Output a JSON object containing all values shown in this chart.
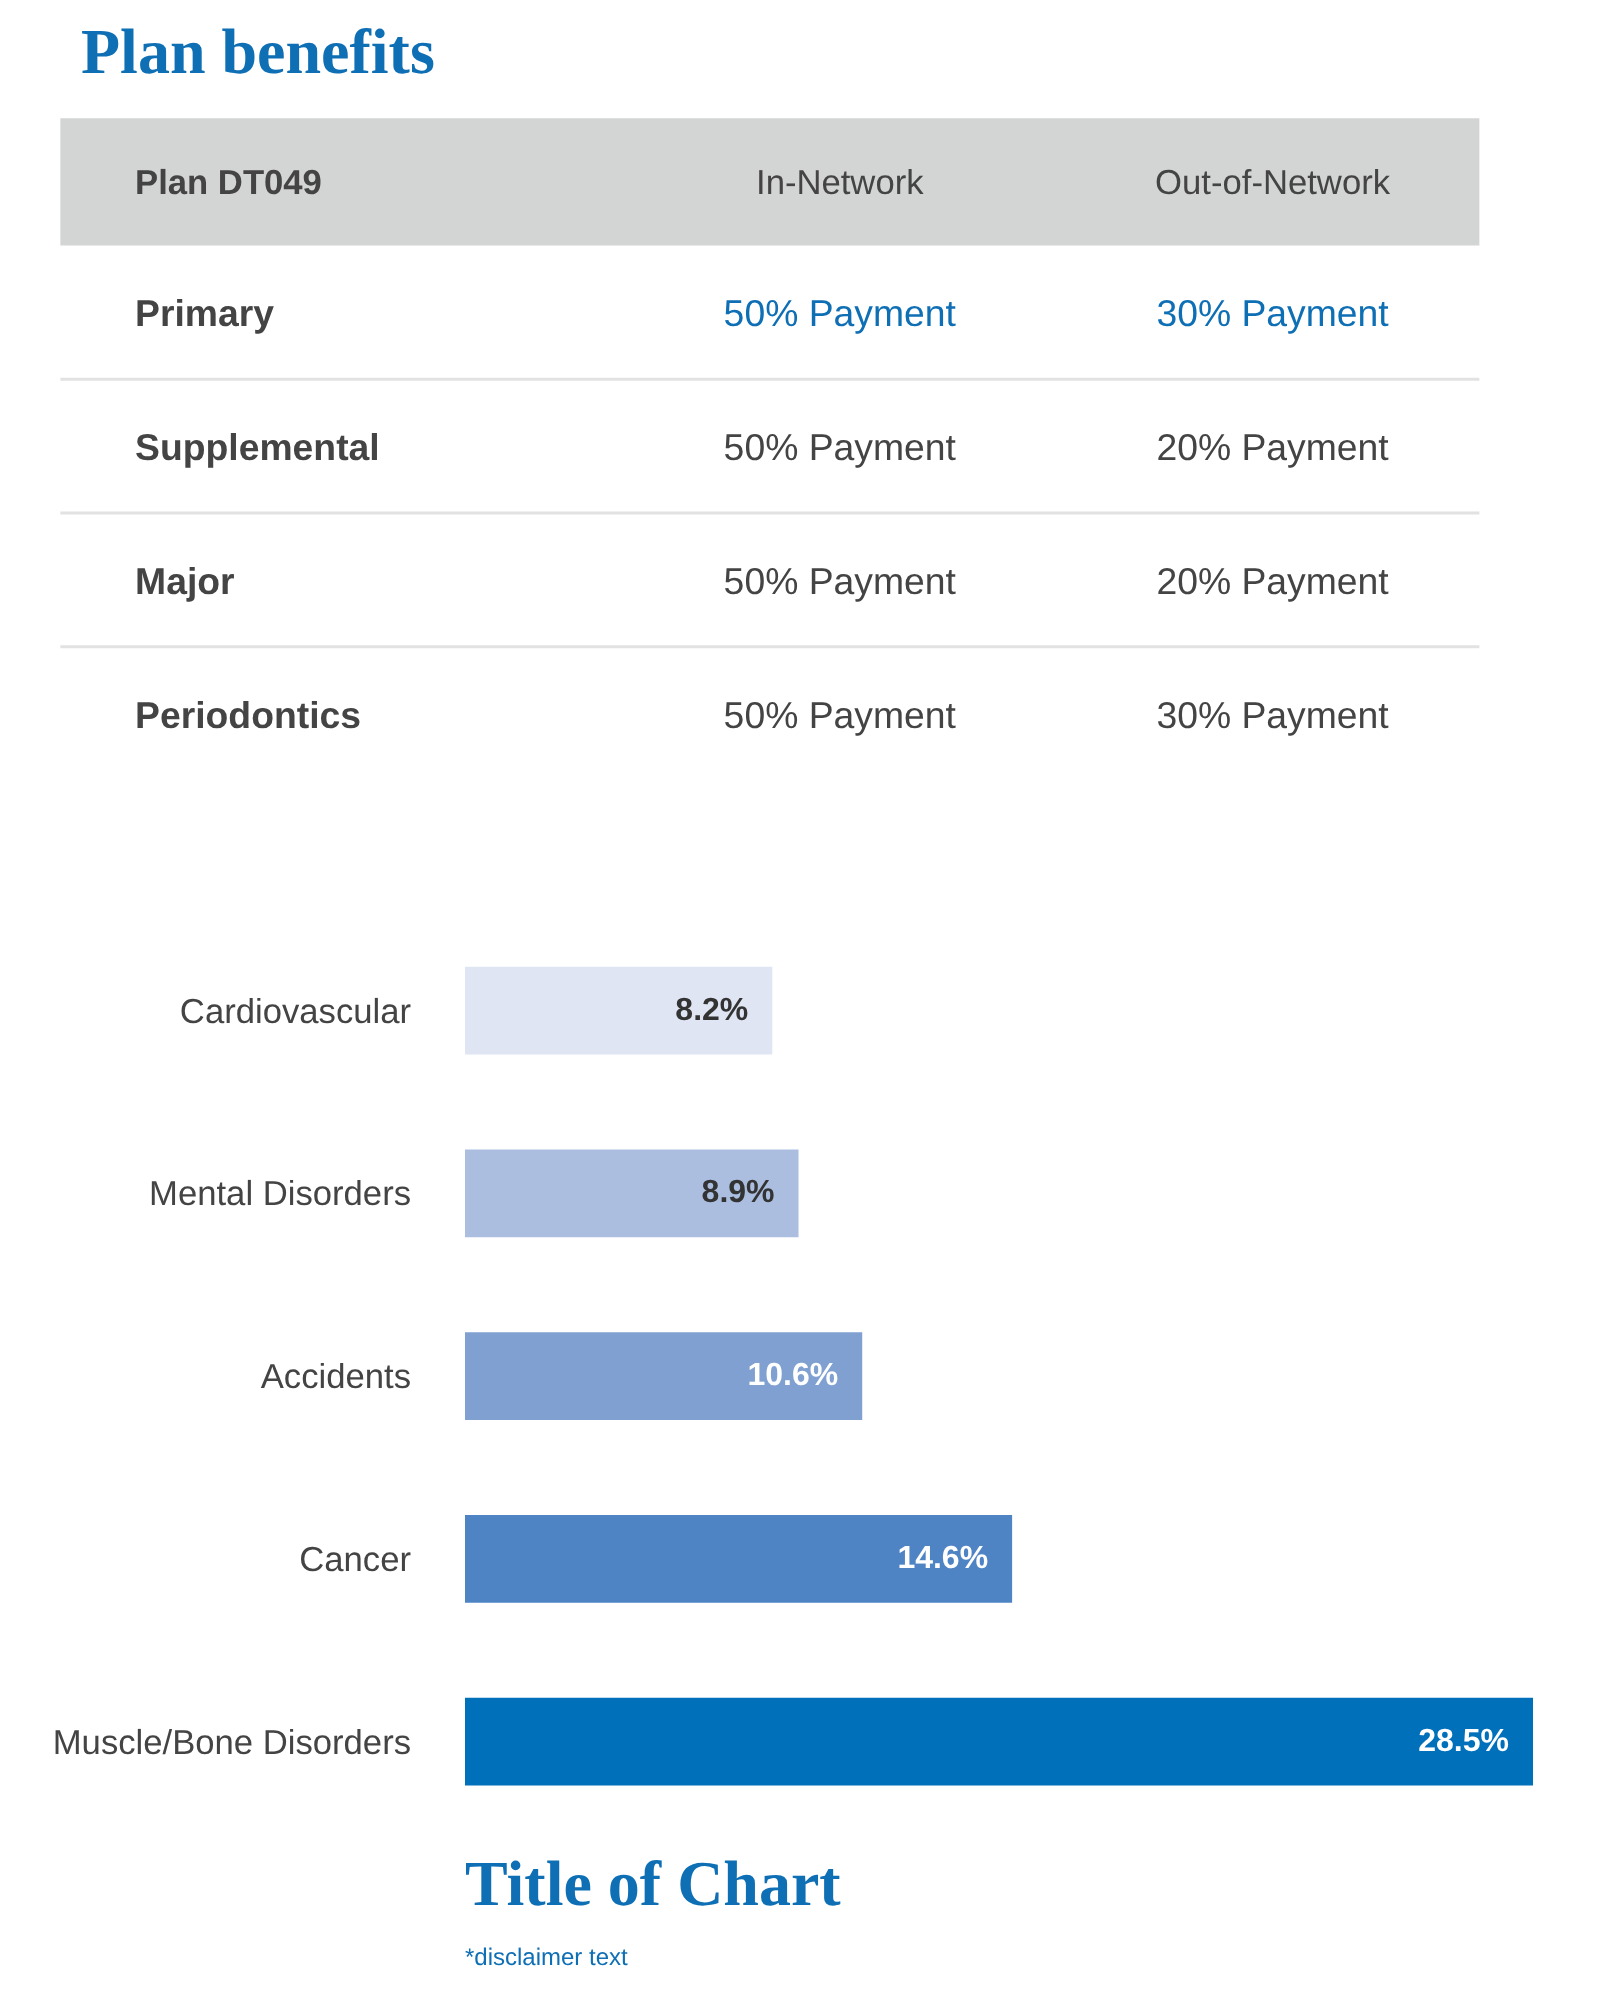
{
  "chart_data": [
    {
      "type": "other",
      "title": "Plan benefits",
      "ylabel": "Plan DT049",
      "categories": [
        "In-Network",
        "Out-of-Network"
      ],
      "y_categories": [
        "Primary",
        "Supplemental",
        "Major",
        "Periodontics"
      ],
      "cell_labels": [
        [
          "50% Payment",
          "30% Payment"
        ],
        [
          "50% Payment",
          "20% Payment"
        ],
        [
          "50% Payment",
          "20% Payment"
        ],
        [
          "50% Payment",
          "30% Payment"
        ]
      ]
    },
    {
      "type": "bar",
      "orientation": "horizontal",
      "title": "Title of Chart",
      "categories": [
        "Cardiovascular",
        "Mental Disorders",
        "Accidents",
        "Cancer",
        "Muscle/Bone Disorders"
      ],
      "values": [
        8.2,
        8.9,
        10.6,
        14.6,
        28.5
      ],
      "colors": [
        "#dfe5f3",
        "#abbee0",
        "#7fa0d1",
        "#4f84c4",
        "#0070ba"
      ],
      "value_labels": [
        "8.2%",
        "8.9%",
        "10.6%",
        "14.6%",
        "28.5%"
      ],
      "annotations": [
        "*disclaimer text"
      ]
    }
  ]
}
